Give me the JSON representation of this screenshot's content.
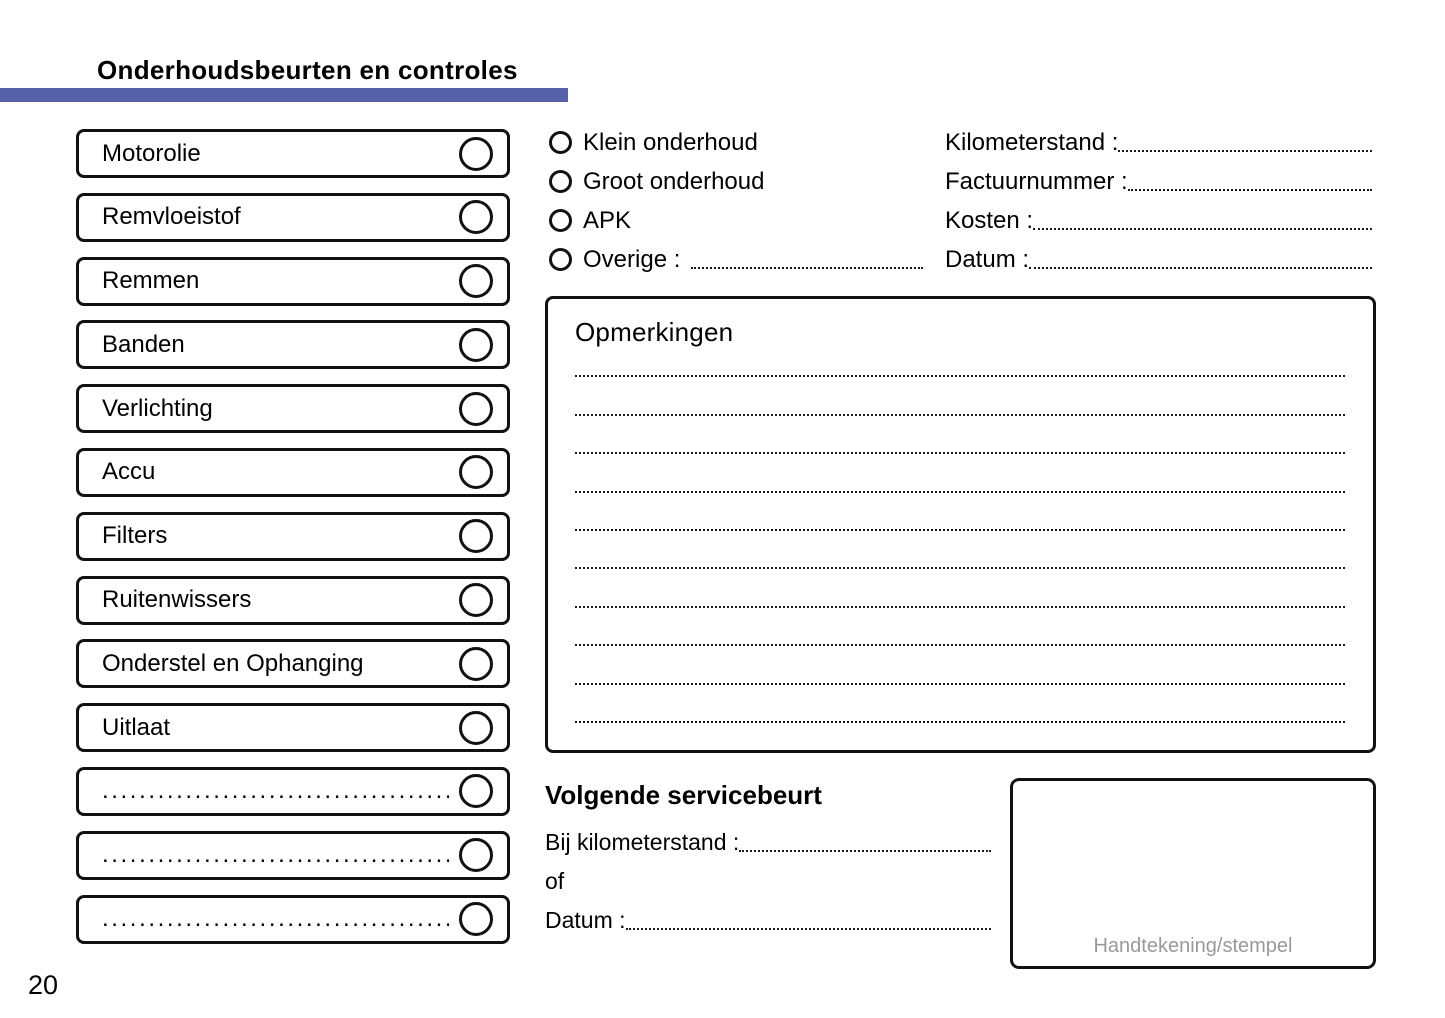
{
  "header": {
    "title": "Onderhoudsbeurten en controles",
    "accent_color": "#5561a8"
  },
  "checklist": {
    "items": [
      "Motorolie",
      "Remvloeistof",
      "Remmen",
      "Banden",
      "Verlichting",
      "Accu",
      "Filters",
      "Ruitenwissers",
      "Onderstel en Ophanging",
      "Uitlaat"
    ],
    "blank_dots": "......................................"
  },
  "service_type": {
    "options": [
      "Klein onderhoud",
      "Groot onderhoud",
      "APK"
    ],
    "other_label": "Overige :"
  },
  "details": {
    "fields": [
      "Kilometerstand :",
      "Factuurnummer :",
      "Kosten :",
      "Datum :"
    ]
  },
  "remarks": {
    "title": "Opmerkingen"
  },
  "next_service": {
    "title": "Volgende servicebeurt",
    "km_label": "Bij kilometerstand :",
    "or_label": "of",
    "date_label": "Datum :"
  },
  "signature": {
    "label": "Handtekening/stempel",
    "label_color": "#999999"
  },
  "page": {
    "number": "20"
  }
}
